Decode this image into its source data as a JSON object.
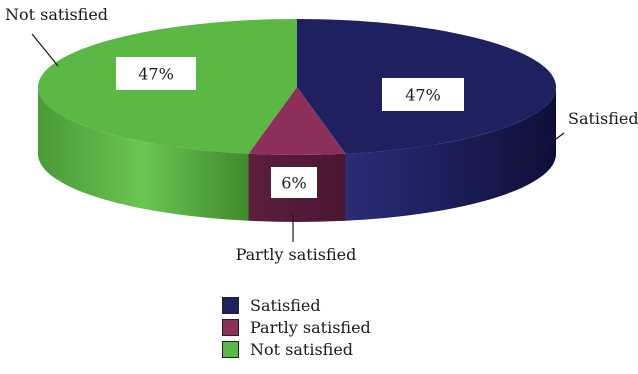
{
  "chart_data": {
    "type": "pie",
    "title": "",
    "slices": [
      {
        "label": "Satisfied",
        "value": 47,
        "value_label": "47%",
        "color": "#1f2060"
      },
      {
        "label": "Partly satisfied",
        "value": 6,
        "value_label": "6%",
        "color": "#8c2f5a"
      },
      {
        "label": "Not satisfied",
        "value": 47,
        "value_label": "47%",
        "color": "#5cb845"
      }
    ],
    "legend": {
      "position": "bottom-center",
      "entries": [
        "Satisfied",
        "Partly satisfied",
        "Not satisfied"
      ]
    },
    "style": "3d"
  }
}
